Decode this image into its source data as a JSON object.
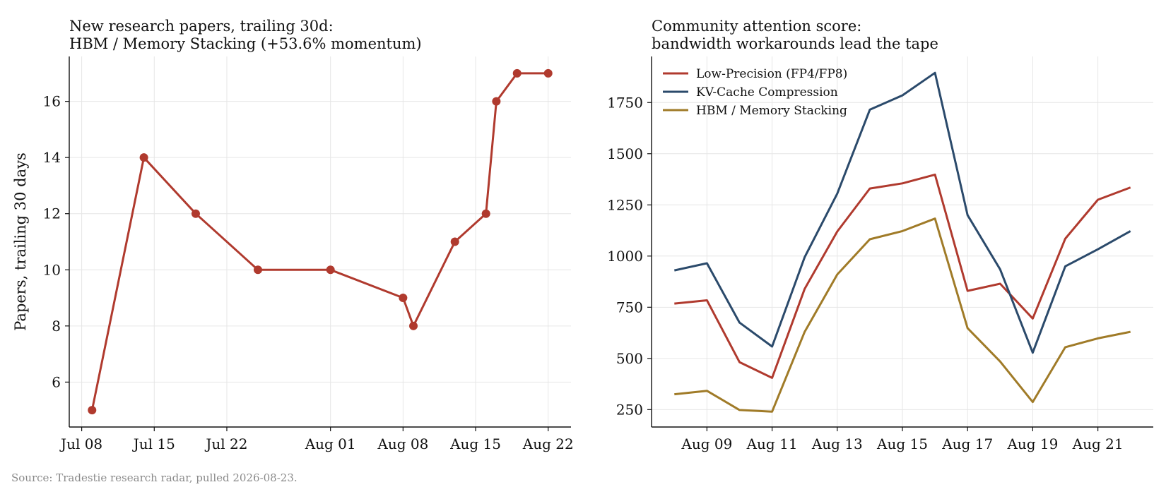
{
  "source": "Source: Tradestie research radar, pulled 2026-08-23.",
  "chart_data": [
    {
      "type": "line",
      "title": [
        "New research papers, trailing 30d:",
        "HBM / Memory Stacking (+53.6% momentum)"
      ],
      "xlabel": "",
      "ylabel": "Papers, trailing 30 days",
      "x_ticks": [
        "Jul 08",
        "Jul 15",
        "Jul 22",
        "Aug 01",
        "Aug 08",
        "Aug 15",
        "Aug 22"
      ],
      "y_ticks": [
        "6",
        "8",
        "10",
        "12",
        "14",
        "16"
      ],
      "ylim": [
        4.4,
        17.6
      ],
      "grid": true,
      "markers": true,
      "series": [
        {
          "color": "#b03a2e",
          "points": [
            {
              "x": "2026-07-09",
              "y": 5
            },
            {
              "x": "2026-07-14",
              "y": 14
            },
            {
              "x": "2026-07-19",
              "y": 12
            },
            {
              "x": "2026-07-25",
              "y": 10
            },
            {
              "x": "2026-08-01",
              "y": 10
            },
            {
              "x": "2026-08-08",
              "y": 9
            },
            {
              "x": "2026-08-09",
              "y": 8
            },
            {
              "x": "2026-08-13",
              "y": 11
            },
            {
              "x": "2026-08-16",
              "y": 12
            },
            {
              "x": "2026-08-17",
              "y": 16
            },
            {
              "x": "2026-08-19",
              "y": 17
            },
            {
              "x": "2026-08-22",
              "y": 17
            }
          ]
        }
      ]
    },
    {
      "type": "line",
      "title": [
        "Community attention score:",
        "bandwidth workarounds lead the tape"
      ],
      "xlabel": "",
      "ylabel": "",
      "x_ticks": [
        "Aug 09",
        "Aug 11",
        "Aug 13",
        "Aug 15",
        "Aug 17",
        "Aug 19",
        "Aug 21"
      ],
      "y_ticks": [
        "250",
        "500",
        "750",
        "1000",
        "1250",
        "1500",
        "1750"
      ],
      "ylim": [
        165,
        1975
      ],
      "grid": true,
      "legend": "top-left",
      "x": [
        "2026-08-08",
        "2026-08-09",
        "2026-08-10",
        "2026-08-11",
        "2026-08-12",
        "2026-08-13",
        "2026-08-14",
        "2026-08-15",
        "2026-08-16",
        "2026-08-17",
        "2026-08-18",
        "2026-08-19",
        "2026-08-20",
        "2026-08-21",
        "2026-08-22"
      ],
      "series": [
        {
          "name": "Low-Precision (FP4/FP8)",
          "color": "#b03a2e",
          "values": [
            768,
            784,
            482,
            405,
            840,
            1120,
            1330,
            1355,
            1398,
            830,
            865,
            695,
            1085,
            1275,
            1335
          ]
        },
        {
          "name": "KV-Cache Compression",
          "color": "#2b4a6b",
          "values": [
            930,
            965,
            675,
            558,
            995,
            1305,
            1715,
            1785,
            1895,
            1200,
            935,
            528,
            950,
            1033,
            1122
          ]
        },
        {
          "name": "HBM / Memory Stacking",
          "color": "#a07b28",
          "values": [
            325,
            342,
            248,
            240,
            630,
            910,
            1082,
            1122,
            1183,
            648,
            485,
            287,
            555,
            598,
            630
          ]
        }
      ]
    }
  ]
}
